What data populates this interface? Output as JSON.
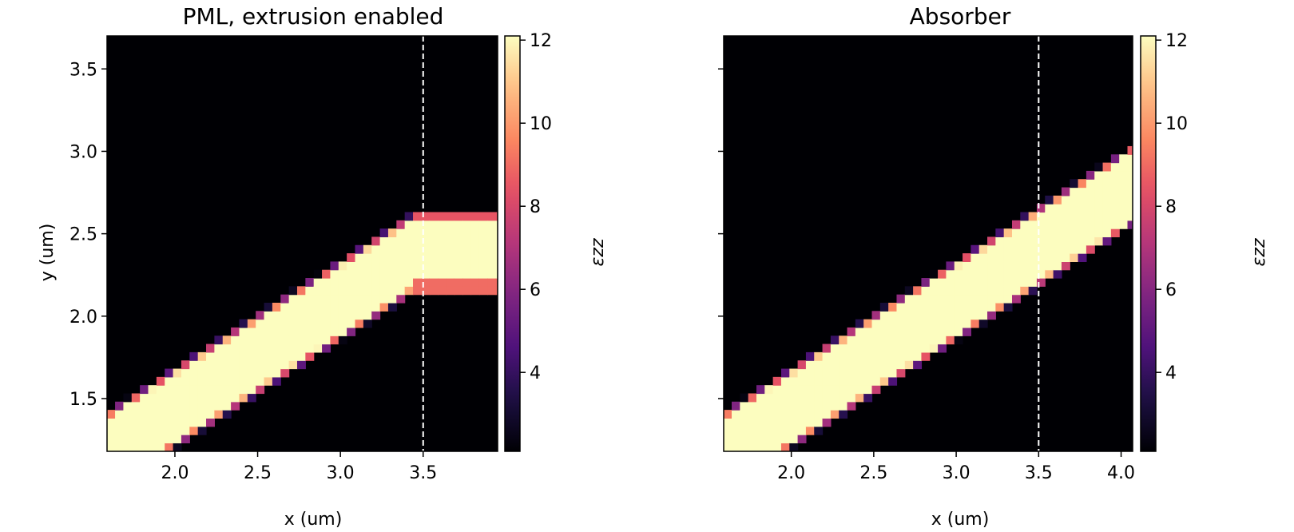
{
  "chart_data": [
    {
      "type": "heatmap",
      "title": "PML, extrusion enabled",
      "xlabel": "x (um)",
      "ylabel": "y (um)",
      "xlim": [
        1.59,
        3.95
      ],
      "ylim": [
        1.18,
        3.7
      ],
      "xticks": [
        "2.0",
        "2.5",
        "3.0",
        "3.5"
      ],
      "xtick_values": [
        2.0,
        2.5,
        3.0,
        3.5
      ],
      "yticks": [
        "1.5",
        "2.0",
        "2.5",
        "3.0",
        "3.5"
      ],
      "ytick_values": [
        1.5,
        2.0,
        2.5,
        3.0,
        3.5
      ],
      "show_ytick_labels": true,
      "grid": false,
      "colormap": "magma",
      "colorbar": {
        "label": "εzz",
        "min": 2.1,
        "max": 12.1,
        "ticks": [
          "4",
          "6",
          "8",
          "10",
          "12"
        ],
        "tick_values": [
          4,
          6,
          8,
          10,
          12
        ]
      },
      "background_value": 2.1,
      "core_value": 12.1,
      "waveguide": {
        "x_start": 1.59,
        "bottom_y_at_start": 0.95,
        "top_y_at_start": 1.4,
        "slope": 0.6516,
        "extrusion_from_x": 3.45
      },
      "extrusion_bottom_edge_value": 9.0,
      "vline": {
        "x": 3.5,
        "style": "dashed",
        "color": "#ffffff"
      },
      "pixel": 0.05
    },
    {
      "type": "heatmap",
      "title": "Absorber",
      "xlabel": "x (um)",
      "ylabel": "",
      "xlim": [
        1.59,
        4.07
      ],
      "ylim": [
        1.18,
        3.7
      ],
      "xticks": [
        "2.0",
        "2.5",
        "3.0",
        "3.5",
        "4.0"
      ],
      "xtick_values": [
        2.0,
        2.5,
        3.0,
        3.5,
        4.0
      ],
      "yticks": [
        "1.5",
        "2.0",
        "2.5",
        "3.0",
        "3.5"
      ],
      "ytick_values": [
        1.5,
        2.0,
        2.5,
        3.0,
        3.5
      ],
      "show_ytick_labels": false,
      "grid": false,
      "colormap": "magma",
      "colorbar": {
        "label": "εzz",
        "min": 2.1,
        "max": 12.1,
        "ticks": [
          "4",
          "6",
          "8",
          "10",
          "12"
        ],
        "tick_values": [
          4,
          6,
          8,
          10,
          12
        ]
      },
      "background_value": 2.1,
      "core_value": 12.1,
      "waveguide": {
        "x_start": 1.59,
        "bottom_y_at_start": 0.95,
        "top_y_at_start": 1.4,
        "slope": 0.6516,
        "extrusion_from_x": null
      },
      "extrusion_bottom_edge_value": null,
      "vline": {
        "x": 3.5,
        "style": "dashed",
        "color": "#ffffff"
      },
      "pixel": 0.05
    }
  ]
}
